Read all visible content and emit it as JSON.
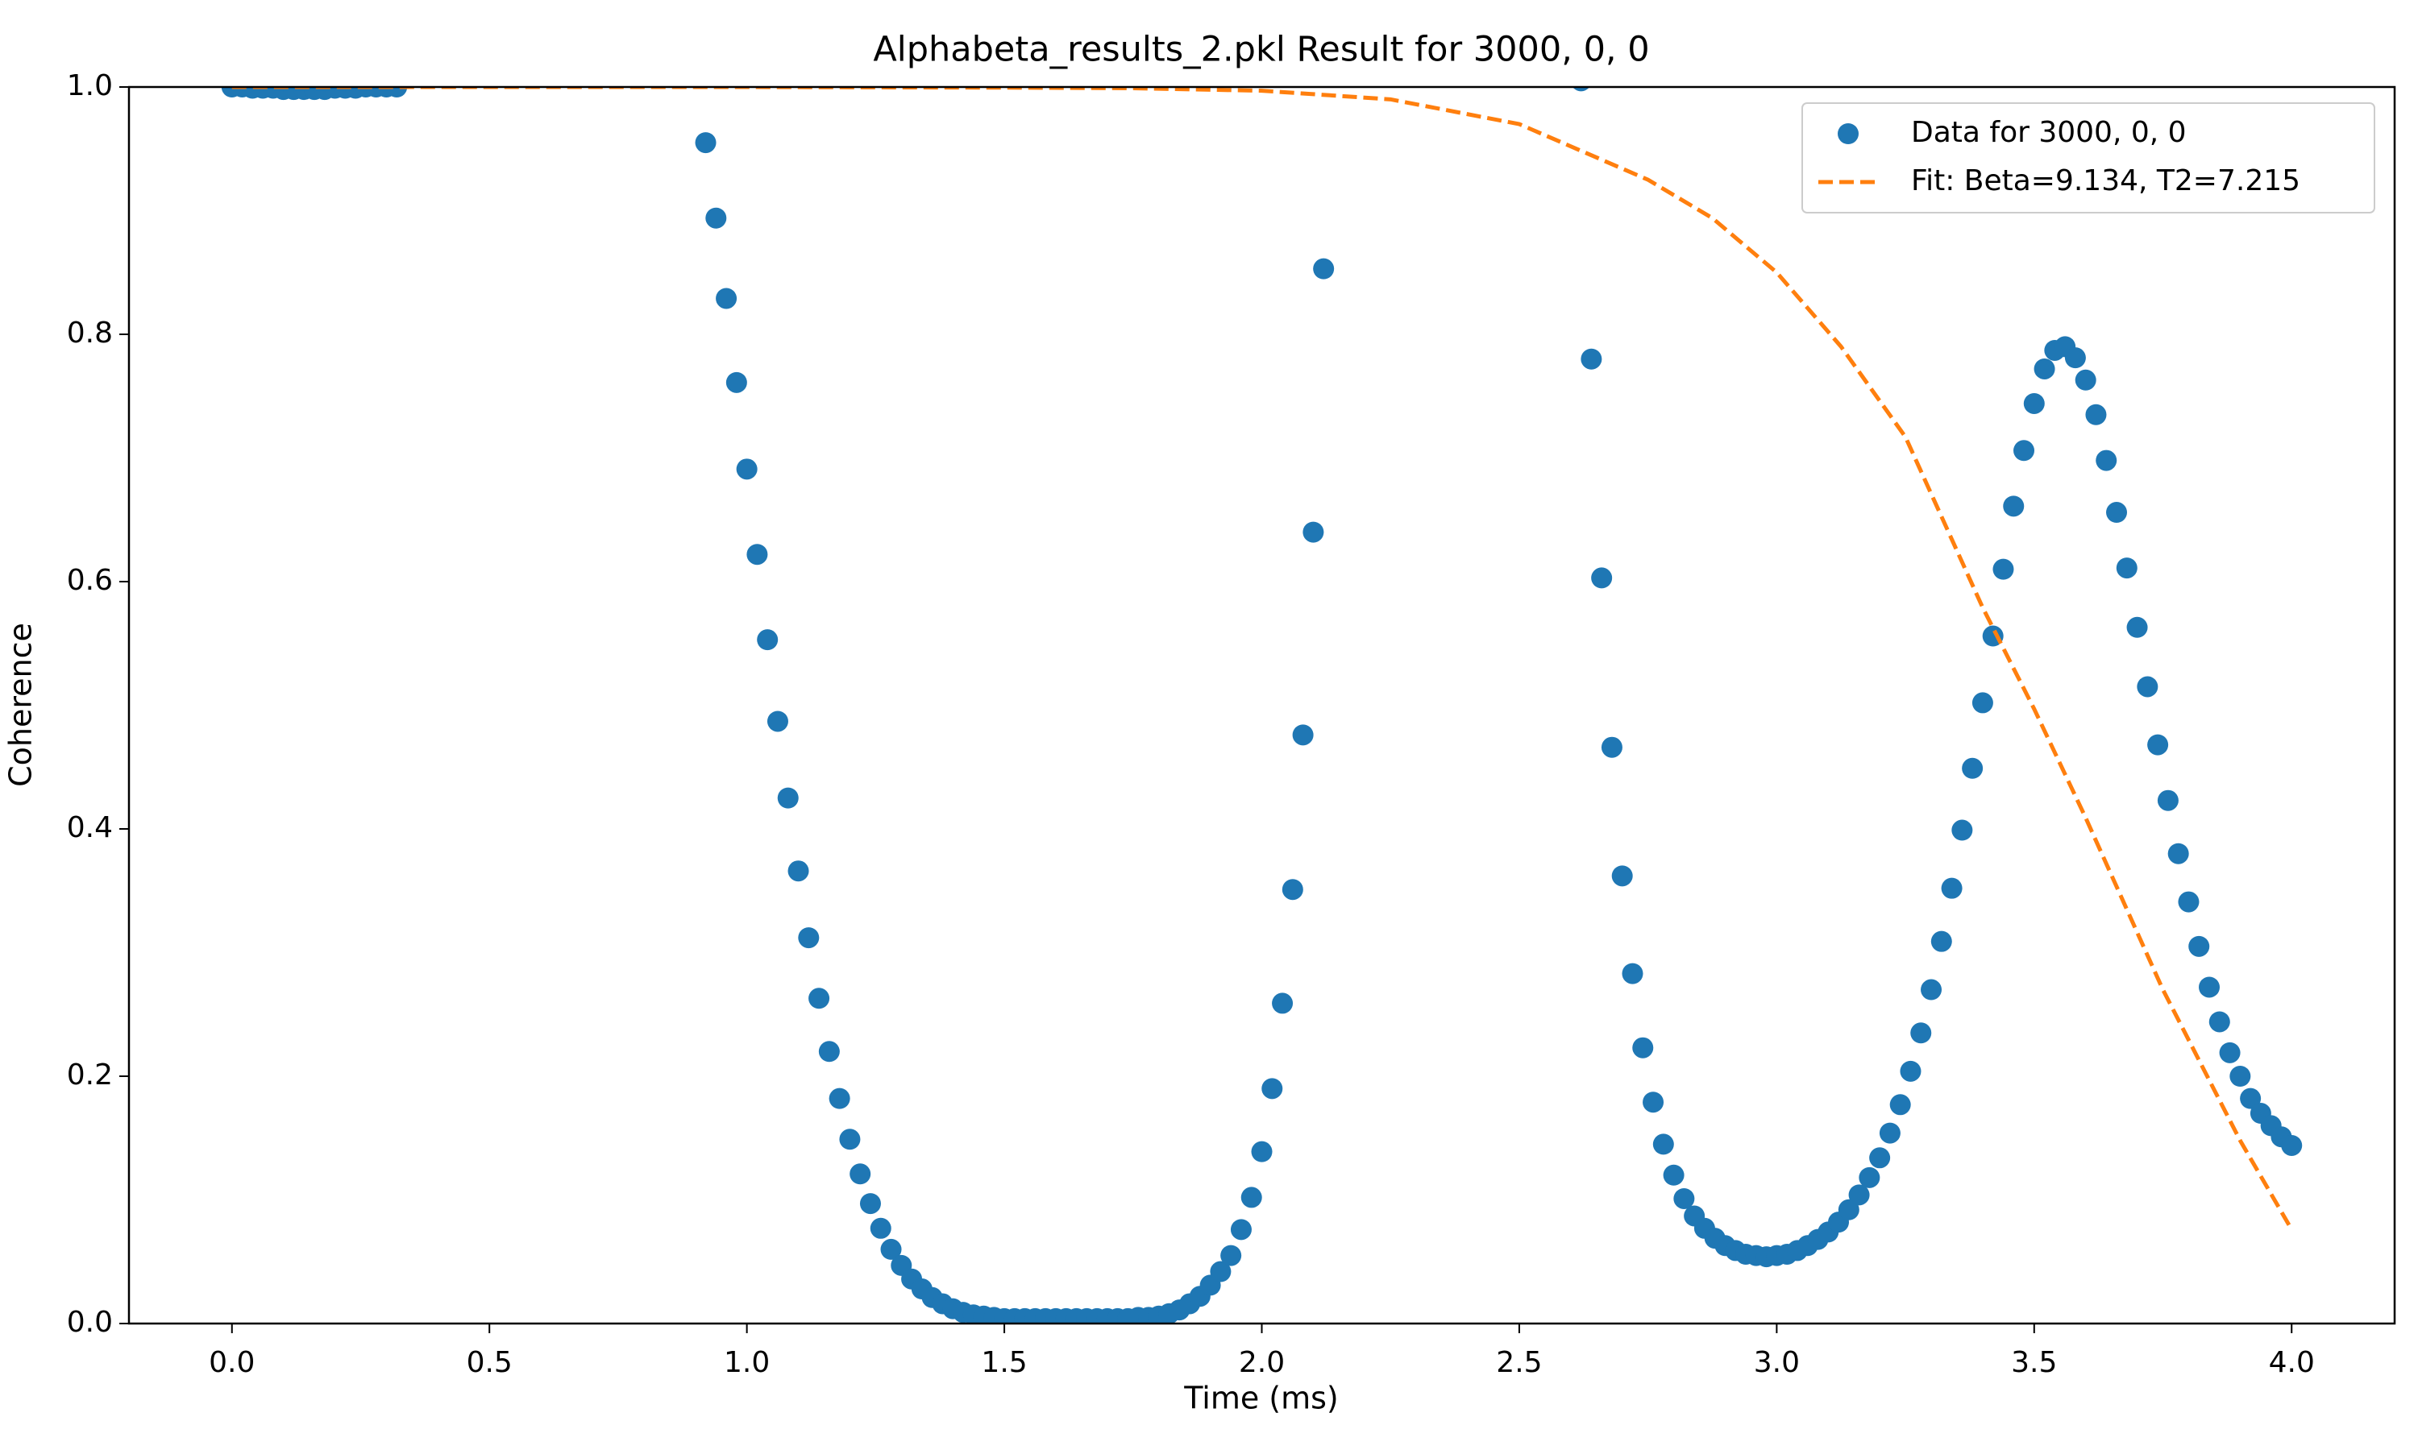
{
  "chart_data": {
    "type": "scatter",
    "title": "Alphabeta_results_2.pkl Result for 3000, 0, 0",
    "x_label": "Time (ms)",
    "y_label": "Coherence",
    "xlim": [
      -0.2,
      4.2
    ],
    "ylim": [
      0,
      1
    ],
    "xticks": [
      {
        "value": 0,
        "label": "0.0"
      },
      0.5,
      {
        "value": 1,
        "label": "1.0"
      },
      1.5,
      {
        "value": 2,
        "label": "2.0"
      },
      2.5,
      {
        "value": 3,
        "label": "3.0"
      },
      3.5,
      {
        "value": 4,
        "label": "4.0"
      }
    ],
    "yticks": [
      {
        "value": 0,
        "label": "0.0"
      },
      0.2,
      0.4,
      0.6,
      0.8,
      {
        "value": 1,
        "label": "1.0"
      }
    ],
    "legend": "upper right",
    "series": [
      {
        "name": "Data for 3000, 0, 0",
        "color": "#1f77b4",
        "type": "scatter",
        "x": [
          0,
          0.02,
          0.04,
          0.06,
          0.08,
          0.1,
          0.12,
          0.14,
          0.16,
          0.18,
          0.2,
          0.22,
          0.24,
          0.26,
          0.28,
          0.3,
          0.32,
          0.92,
          0.94,
          0.96,
          0.98,
          1.0,
          1.02,
          1.04,
          1.06,
          1.08,
          1.1,
          1.12,
          1.14,
          1.16,
          1.18,
          1.2,
          1.22,
          1.24,
          1.26,
          1.28,
          1.3,
          1.32,
          1.34,
          1.36,
          1.38,
          1.4,
          1.42,
          1.44,
          1.46,
          1.48,
          1.5,
          1.52,
          1.54,
          1.56,
          1.58,
          1.6,
          1.62,
          1.64,
          1.66,
          1.68,
          1.7,
          1.72,
          1.74,
          1.76,
          1.78,
          1.8,
          1.82,
          1.84,
          1.86,
          1.88,
          1.9,
          1.92,
          1.94,
          1.96,
          1.98,
          2.0,
          2.02,
          2.04,
          2.06,
          2.08,
          2.1,
          2.12,
          2.62,
          2.64,
          2.66,
          2.68,
          2.7,
          2.72,
          2.74,
          2.76,
          2.78,
          2.8,
          2.82,
          2.84,
          2.86,
          2.88,
          2.9,
          2.92,
          2.94,
          2.96,
          2.98,
          3.0,
          3.02,
          3.04,
          3.06,
          3.08,
          3.1,
          3.12,
          3.14,
          3.16,
          3.18,
          3.2,
          3.22,
          3.24,
          3.26,
          3.28,
          3.3,
          3.32,
          3.34,
          3.36,
          3.38,
          3.4,
          3.42,
          3.44,
          3.46,
          3.48,
          3.5,
          3.52,
          3.54,
          3.56,
          3.58,
          3.6,
          3.62,
          3.64,
          3.66,
          3.68,
          3.7,
          3.72,
          3.74,
          3.76,
          3.78,
          3.8,
          3.82,
          3.84,
          3.86,
          3.88,
          3.9,
          3.92,
          3.94,
          3.96,
          3.98,
          4.0
        ],
        "values": [
          1.0,
          1.0,
          0.999,
          0.999,
          0.999,
          0.998,
          0.998,
          0.998,
          0.998,
          0.998,
          0.999,
          0.999,
          0.999,
          1.0,
          1.0,
          1.0,
          1.0,
          0.955,
          0.894,
          0.829,
          0.761,
          0.691,
          0.622,
          0.553,
          0.487,
          0.425,
          0.366,
          0.312,
          0.263,
          0.22,
          0.182,
          0.149,
          0.121,
          0.097,
          0.077,
          0.06,
          0.047,
          0.036,
          0.028,
          0.021,
          0.016,
          0.012,
          0.009,
          0.007,
          0.006,
          0.005,
          0.004,
          0.004,
          0.004,
          0.004,
          0.004,
          0.004,
          0.004,
          0.004,
          0.004,
          0.004,
          0.004,
          0.004,
          0.004,
          0.005,
          0.005,
          0.006,
          0.008,
          0.011,
          0.016,
          0.022,
          0.031,
          0.042,
          0.055,
          0.076,
          0.102,
          0.139,
          0.19,
          0.259,
          0.351,
          0.476,
          0.64,
          0.853,
          1.005,
          0.78,
          0.603,
          0.466,
          0.362,
          0.283,
          0.223,
          0.179,
          0.145,
          0.12,
          0.101,
          0.087,
          0.077,
          0.069,
          0.063,
          0.059,
          0.056,
          0.055,
          0.054,
          0.055,
          0.056,
          0.059,
          0.063,
          0.068,
          0.074,
          0.082,
          0.092,
          0.104,
          0.118,
          0.134,
          0.154,
          0.177,
          0.204,
          0.235,
          0.27,
          0.309,
          0.352,
          0.399,
          0.449,
          0.502,
          0.556,
          0.61,
          0.661,
          0.706,
          0.744,
          0.772,
          0.787,
          0.79,
          0.781,
          0.763,
          0.735,
          0.698,
          0.656,
          0.611,
          0.563,
          0.515,
          0.468,
          0.423,
          0.38,
          0.341,
          0.305,
          0.272,
          0.244,
          0.219,
          0.2,
          0.182,
          0.17,
          0.16,
          0.151,
          0.144
        ]
      },
      {
        "name": "Fit: Beta=9.134, T2=7.215",
        "color": "#ff7f0e",
        "type": "line",
        "linestyle": "dashed",
        "x": [
          0,
          0.5,
          1.0,
          1.5,
          1.75,
          2.0,
          2.25,
          2.5,
          2.75,
          2.875,
          3.0,
          3.125,
          3.25,
          3.4,
          3.5,
          3.6,
          3.75,
          3.9,
          4.0
        ],
        "values": [
          1,
          1,
          1,
          0.9995,
          0.999,
          0.997,
          0.99,
          0.97,
          0.925,
          0.894,
          0.85,
          0.79,
          0.717,
          0.579,
          0.497,
          0.409,
          0.27,
          0.148,
          0.076
        ]
      }
    ]
  }
}
